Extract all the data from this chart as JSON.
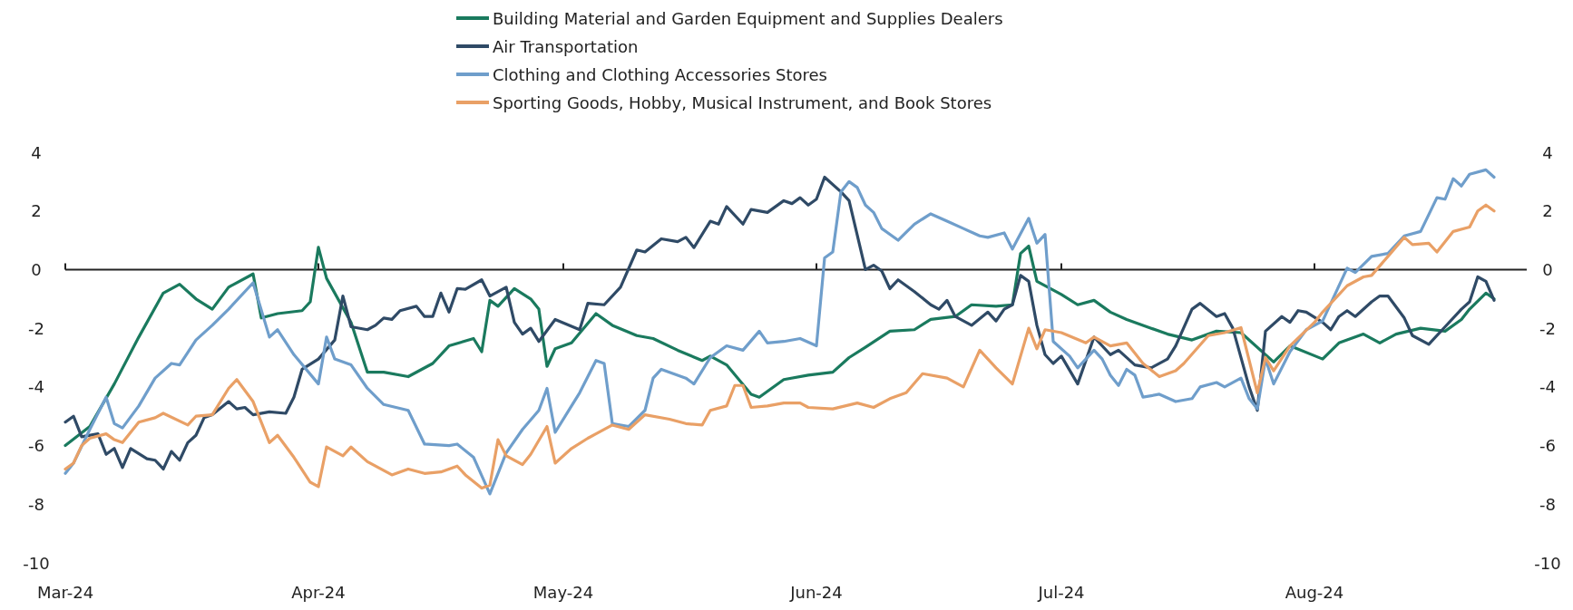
{
  "chart_data": {
    "type": "line",
    "legend": "top",
    "line_style": "solid",
    "marker": "none",
    "xlim": [
      "2024-03-01",
      "2024-08-27"
    ],
    "xticks": [
      {
        "value": "2024-03-01",
        "label": "Mar-24"
      },
      {
        "value": "2024-04-01",
        "label": "Apr-24"
      },
      {
        "value": "2024-05-01",
        "label": "May-24"
      },
      {
        "value": "2024-06-01",
        "label": "Jun-24"
      },
      {
        "value": "2024-07-01",
        "label": "Jul-24"
      },
      {
        "value": "2024-08-01",
        "label": "Aug-24"
      }
    ],
    "ylim": [
      -10,
      4
    ],
    "yticks": [
      -10,
      -8,
      -6,
      -4,
      -2,
      0,
      2,
      4
    ],
    "y2lim": [
      -10,
      4
    ],
    "y2ticks": [
      -10,
      -8,
      -6,
      -4,
      -2,
      0,
      2,
      4
    ],
    "series": [
      {
        "name": "Building Material and Garden Equipment and Supplies Dealers",
        "color": "#1a7a5e",
        "x": [
          "2024-03-01",
          "2024-03-04",
          "2024-03-07",
          "2024-03-10",
          "2024-03-13",
          "2024-03-15",
          "2024-03-17",
          "2024-03-19",
          "2024-03-21",
          "2024-03-24",
          "2024-03-25",
          "2024-03-27",
          "2024-03-30",
          "2024-03-31",
          "2024-04-01",
          "2024-04-02",
          "2024-04-05",
          "2024-04-07",
          "2024-04-09",
          "2024-04-12",
          "2024-04-15",
          "2024-04-17",
          "2024-04-20",
          "2024-04-21",
          "2024-04-22",
          "2024-04-23",
          "2024-04-25",
          "2024-04-27",
          "2024-04-28",
          "2024-04-29",
          "2024-04-30",
          "2024-05-02",
          "2024-05-05",
          "2024-05-07",
          "2024-05-10",
          "2024-05-12",
          "2024-05-15",
          "2024-05-18",
          "2024-05-19",
          "2024-05-21",
          "2024-05-24",
          "2024-05-25",
          "2024-05-28",
          "2024-05-31",
          "2024-06-03",
          "2024-06-05",
          "2024-06-07",
          "2024-06-10",
          "2024-06-13",
          "2024-06-15",
          "2024-06-18",
          "2024-06-20",
          "2024-06-23",
          "2024-06-25",
          "2024-06-26",
          "2024-06-27",
          "2024-06-28",
          "2024-07-01",
          "2024-07-03",
          "2024-07-05",
          "2024-07-07",
          "2024-07-09",
          "2024-07-12",
          "2024-07-14",
          "2024-07-17",
          "2024-07-20",
          "2024-07-23",
          "2024-07-27",
          "2024-07-29",
          "2024-08-02",
          "2024-08-04",
          "2024-08-07",
          "2024-08-09",
          "2024-08-11",
          "2024-08-14",
          "2024-08-17",
          "2024-08-19",
          "2024-08-20",
          "2024-08-22",
          "2024-08-23"
        ],
        "values": [
          -6.0,
          -5.35,
          -3.9,
          -2.3,
          -0.8,
          -0.5,
          -1.0,
          -1.35,
          -0.6,
          -0.15,
          -1.65,
          -1.5,
          -1.4,
          -1.1,
          0.76,
          -0.3,
          -1.8,
          -3.5,
          -3.5,
          -3.65,
          -3.2,
          -2.6,
          -2.35,
          -2.8,
          -1.05,
          -1.25,
          -0.65,
          -1.0,
          -1.35,
          -3.3,
          -2.7,
          -2.5,
          -1.5,
          -1.9,
          -2.25,
          -2.35,
          -2.75,
          -3.1,
          -2.95,
          -3.25,
          -4.25,
          -4.35,
          -3.75,
          -3.6,
          -3.5,
          -3.0,
          -2.65,
          -2.1,
          -2.05,
          -1.7,
          -1.6,
          -1.2,
          -1.25,
          -1.2,
          0.55,
          0.8,
          -0.4,
          -0.85,
          -1.2,
          -1.05,
          -1.45,
          -1.7,
          -2.0,
          -2.2,
          -2.4,
          -2.1,
          -2.15,
          -3.15,
          -2.6,
          -3.05,
          -2.5,
          -2.2,
          -2.5,
          -2.2,
          -2.0,
          -2.1,
          -1.7,
          -1.35,
          -0.8,
          -1.0
        ]
      },
      {
        "name": "Air Transportation",
        "color": "#2f4a66",
        "x": [
          "2024-03-01",
          "2024-03-02",
          "2024-03-03",
          "2024-03-05",
          "2024-03-06",
          "2024-03-07",
          "2024-03-08",
          "2024-03-09",
          "2024-03-11",
          "2024-03-12",
          "2024-03-13",
          "2024-03-14",
          "2024-03-15",
          "2024-03-16",
          "2024-03-17",
          "2024-03-18",
          "2024-03-19",
          "2024-03-21",
          "2024-03-22",
          "2024-03-23",
          "2024-03-24",
          "2024-03-26",
          "2024-03-28",
          "2024-03-29",
          "2024-03-30",
          "2024-04-01",
          "2024-04-03",
          "2024-04-04",
          "2024-04-05",
          "2024-04-07",
          "2024-04-08",
          "2024-04-09",
          "2024-04-10",
          "2024-04-11",
          "2024-04-13",
          "2024-04-14",
          "2024-04-15",
          "2024-04-16",
          "2024-04-17",
          "2024-04-18",
          "2024-04-19",
          "2024-04-21",
          "2024-04-22",
          "2024-04-24",
          "2024-04-25",
          "2024-04-26",
          "2024-04-27",
          "2024-04-28",
          "2024-04-30",
          "2024-05-03",
          "2024-05-04",
          "2024-05-06",
          "2024-05-08",
          "2024-05-10",
          "2024-05-11",
          "2024-05-13",
          "2024-05-15",
          "2024-05-16",
          "2024-05-17",
          "2024-05-19",
          "2024-05-20",
          "2024-05-21",
          "2024-05-23",
          "2024-05-24",
          "2024-05-26",
          "2024-05-28",
          "2024-05-29",
          "2024-05-30",
          "2024-05-31",
          "2024-06-01",
          "2024-06-02",
          "2024-06-04",
          "2024-06-05",
          "2024-06-07",
          "2024-06-08",
          "2024-06-09",
          "2024-06-10",
          "2024-06-11",
          "2024-06-13",
          "2024-06-15",
          "2024-06-16",
          "2024-06-17",
          "2024-06-18",
          "2024-06-20",
          "2024-06-22",
          "2024-06-23",
          "2024-06-24",
          "2024-06-25",
          "2024-06-26",
          "2024-06-27",
          "2024-06-28",
          "2024-06-29",
          "2024-06-30",
          "2024-07-01",
          "2024-07-03",
          "2024-07-05",
          "2024-07-07",
          "2024-07-08",
          "2024-07-10",
          "2024-07-12",
          "2024-07-14",
          "2024-07-15",
          "2024-07-17",
          "2024-07-18",
          "2024-07-20",
          "2024-07-21",
          "2024-07-22",
          "2024-07-24",
          "2024-07-25",
          "2024-07-26",
          "2024-07-28",
          "2024-07-29",
          "2024-07-30",
          "2024-07-31",
          "2024-08-02",
          "2024-08-03",
          "2024-08-04",
          "2024-08-05",
          "2024-08-06",
          "2024-08-08",
          "2024-08-09",
          "2024-08-10",
          "2024-08-12",
          "2024-08-13",
          "2024-08-15",
          "2024-08-17",
          "2024-08-19",
          "2024-08-20",
          "2024-08-21",
          "2024-08-22",
          "2024-08-23"
        ],
        "values": [
          -5.2,
          -5.0,
          -5.7,
          -5.6,
          -6.3,
          -6.1,
          -6.75,
          -6.1,
          -6.45,
          -6.5,
          -6.8,
          -6.2,
          -6.5,
          -5.9,
          -5.65,
          -5.05,
          -4.95,
          -4.5,
          -4.75,
          -4.7,
          -4.95,
          -4.85,
          -4.9,
          -4.35,
          -3.4,
          -3.05,
          -2.4,
          -0.9,
          -1.95,
          -2.05,
          -1.9,
          -1.65,
          -1.7,
          -1.4,
          -1.25,
          -1.6,
          -1.6,
          -0.8,
          -1.45,
          -0.65,
          -0.67,
          -0.35,
          -0.9,
          -0.6,
          -1.8,
          -2.2,
          -2.0,
          -2.45,
          -1.7,
          -2.05,
          -1.15,
          -1.2,
          -0.6,
          0.67,
          0.6,
          1.05,
          0.95,
          1.1,
          0.75,
          1.65,
          1.55,
          2.15,
          1.55,
          2.05,
          1.95,
          2.35,
          2.25,
          2.45,
          2.2,
          2.4,
          3.15,
          2.65,
          2.35,
          0.0,
          0.15,
          -0.05,
          -0.65,
          -0.35,
          -0.75,
          -1.2,
          -1.35,
          -1.05,
          -1.6,
          -1.9,
          -1.45,
          -1.75,
          -1.35,
          -1.2,
          -0.2,
          -0.4,
          -1.9,
          -2.9,
          -3.2,
          -2.95,
          -3.9,
          -2.3,
          -2.9,
          -2.75,
          -3.25,
          -3.35,
          -3.05,
          -2.6,
          -1.35,
          -1.15,
          -1.6,
          -1.5,
          -2.0,
          -4.0,
          -4.8,
          -2.1,
          -1.6,
          -1.8,
          -1.4,
          -1.45,
          -1.8,
          -2.05,
          -1.6,
          -1.4,
          -1.6,
          -1.1,
          -0.9,
          -0.9,
          -1.65,
          -2.25,
          -2.55,
          -1.95,
          -1.35,
          -1.1,
          -0.25,
          -0.4,
          -1.05
        ]
      },
      {
        "name": "Clothing and Clothing Accessories Stores",
        "color": "#6f9ecb",
        "x": [
          "2024-03-01",
          "2024-03-02",
          "2024-03-04",
          "2024-03-06",
          "2024-03-07",
          "2024-03-08",
          "2024-03-10",
          "2024-03-12",
          "2024-03-14",
          "2024-03-15",
          "2024-03-17",
          "2024-03-19",
          "2024-03-21",
          "2024-03-24",
          "2024-03-26",
          "2024-03-27",
          "2024-03-29",
          "2024-04-01",
          "2024-04-02",
          "2024-04-03",
          "2024-04-05",
          "2024-04-07",
          "2024-04-09",
          "2024-04-12",
          "2024-04-14",
          "2024-04-17",
          "2024-04-18",
          "2024-04-20",
          "2024-04-22",
          "2024-04-24",
          "2024-04-26",
          "2024-04-28",
          "2024-04-29",
          "2024-04-30",
          "2024-05-02",
          "2024-05-03",
          "2024-05-05",
          "2024-05-06",
          "2024-05-07",
          "2024-05-09",
          "2024-05-11",
          "2024-05-12",
          "2024-05-13",
          "2024-05-16",
          "2024-05-17",
          "2024-05-19",
          "2024-05-21",
          "2024-05-23",
          "2024-05-25",
          "2024-05-26",
          "2024-05-28",
          "2024-05-30",
          "2024-06-01",
          "2024-06-02",
          "2024-06-03",
          "2024-06-04",
          "2024-06-05",
          "2024-06-06",
          "2024-06-07",
          "2024-06-08",
          "2024-06-09",
          "2024-06-11",
          "2024-06-13",
          "2024-06-15",
          "2024-06-17",
          "2024-06-19",
          "2024-06-21",
          "2024-06-22",
          "2024-06-24",
          "2024-06-25",
          "2024-06-27",
          "2024-06-28",
          "2024-06-29",
          "2024-06-30",
          "2024-07-02",
          "2024-07-03",
          "2024-07-04",
          "2024-07-05",
          "2024-07-06",
          "2024-07-07",
          "2024-07-08",
          "2024-07-09",
          "2024-07-10",
          "2024-07-11",
          "2024-07-13",
          "2024-07-15",
          "2024-07-17",
          "2024-07-18",
          "2024-07-20",
          "2024-07-21",
          "2024-07-23",
          "2024-07-24",
          "2024-07-25",
          "2024-07-26",
          "2024-07-27",
          "2024-07-29",
          "2024-07-31",
          "2024-08-02",
          "2024-08-05",
          "2024-08-06",
          "2024-08-08",
          "2024-08-10",
          "2024-08-12",
          "2024-08-14",
          "2024-08-16",
          "2024-08-17",
          "2024-08-18",
          "2024-08-19",
          "2024-08-20",
          "2024-08-22",
          "2024-08-23"
        ],
        "values": [
          -6.95,
          -6.6,
          -5.45,
          -4.35,
          -5.25,
          -5.4,
          -4.65,
          -3.7,
          -3.2,
          -3.25,
          -2.4,
          -1.9,
          -1.35,
          -0.45,
          -2.3,
          -2.05,
          -2.9,
          -3.9,
          -2.3,
          -3.05,
          -3.25,
          -4.05,
          -4.6,
          -4.8,
          -5.95,
          -6.0,
          -5.95,
          -6.4,
          -7.65,
          -6.25,
          -5.45,
          -4.8,
          -4.05,
          -5.55,
          -4.65,
          -4.2,
          -3.1,
          -3.2,
          -5.25,
          -5.35,
          -4.8,
          -3.7,
          -3.4,
          -3.7,
          -3.9,
          -3.0,
          -2.6,
          -2.75,
          -2.1,
          -2.5,
          -2.45,
          -2.35,
          -2.6,
          0.4,
          0.6,
          2.65,
          3.0,
          2.8,
          2.2,
          1.95,
          1.4,
          1.0,
          1.55,
          1.9,
          1.65,
          1.4,
          1.15,
          1.1,
          1.25,
          0.7,
          1.75,
          0.9,
          1.2,
          -2.45,
          -2.95,
          -3.35,
          -3.05,
          -2.75,
          -3.05,
          -3.6,
          -3.95,
          -3.4,
          -3.6,
          -4.35,
          -4.25,
          -4.5,
          -4.4,
          -4.0,
          -3.85,
          -4.0,
          -3.7,
          -4.4,
          -4.75,
          -3.05,
          -3.9,
          -2.8,
          -2.05,
          -1.75,
          0.05,
          -0.1,
          0.45,
          0.55,
          1.15,
          1.3,
          2.45,
          2.4,
          3.1,
          2.85,
          3.25,
          3.4,
          3.15
        ]
      },
      {
        "name": "Sporting Goods, Hobby, Musical Instrument, and Book Stores",
        "color": "#e9a066",
        "x": [
          "2024-03-01",
          "2024-03-02",
          "2024-03-03",
          "2024-03-04",
          "2024-03-06",
          "2024-03-07",
          "2024-03-08",
          "2024-03-10",
          "2024-03-12",
          "2024-03-13",
          "2024-03-16",
          "2024-03-17",
          "2024-03-19",
          "2024-03-21",
          "2024-03-22",
          "2024-03-24",
          "2024-03-26",
          "2024-03-27",
          "2024-03-29",
          "2024-03-31",
          "2024-04-01",
          "2024-04-02",
          "2024-04-04",
          "2024-04-05",
          "2024-04-07",
          "2024-04-10",
          "2024-04-12",
          "2024-04-14",
          "2024-04-16",
          "2024-04-18",
          "2024-04-19",
          "2024-04-21",
          "2024-04-22",
          "2024-04-23",
          "2024-04-24",
          "2024-04-26",
          "2024-04-27",
          "2024-04-29",
          "2024-04-30",
          "2024-05-02",
          "2024-05-04",
          "2024-05-05",
          "2024-05-07",
          "2024-05-09",
          "2024-05-11",
          "2024-05-14",
          "2024-05-16",
          "2024-05-18",
          "2024-05-19",
          "2024-05-21",
          "2024-05-22",
          "2024-05-23",
          "2024-05-24",
          "2024-05-26",
          "2024-05-28",
          "2024-05-30",
          "2024-05-31",
          "2024-06-03",
          "2024-06-06",
          "2024-06-08",
          "2024-06-10",
          "2024-06-12",
          "2024-06-14",
          "2024-06-17",
          "2024-06-19",
          "2024-06-21",
          "2024-06-23",
          "2024-06-25",
          "2024-06-27",
          "2024-06-28",
          "2024-06-29",
          "2024-07-01",
          "2024-07-04",
          "2024-07-05",
          "2024-07-07",
          "2024-07-09",
          "2024-07-11",
          "2024-07-13",
          "2024-07-15",
          "2024-07-16",
          "2024-07-19",
          "2024-07-21",
          "2024-07-23",
          "2024-07-25",
          "2024-07-26",
          "2024-07-27",
          "2024-07-29",
          "2024-08-01",
          "2024-08-02",
          "2024-08-05",
          "2024-08-07",
          "2024-08-08",
          "2024-08-10",
          "2024-08-12",
          "2024-08-13",
          "2024-08-15",
          "2024-08-16",
          "2024-08-18",
          "2024-08-20",
          "2024-08-21",
          "2024-08-22",
          "2024-08-23"
        ],
        "values": [
          -6.8,
          -6.6,
          -6.0,
          -5.75,
          -5.6,
          -5.8,
          -5.9,
          -5.2,
          -5.05,
          -4.9,
          -5.3,
          -5.0,
          -4.95,
          -4.05,
          -3.75,
          -4.5,
          -5.9,
          -5.65,
          -6.4,
          -7.25,
          -7.4,
          -6.05,
          -6.35,
          -6.05,
          -6.55,
          -7.0,
          -6.8,
          -6.95,
          -6.9,
          -6.7,
          -7.0,
          -7.45,
          -7.35,
          -5.8,
          -6.35,
          -6.65,
          -6.3,
          -5.35,
          -6.6,
          -6.1,
          -5.75,
          -5.6,
          -5.3,
          -5.45,
          -4.95,
          -5.1,
          -5.25,
          -5.3,
          -4.8,
          -4.65,
          -3.95,
          -3.95,
          -4.7,
          -4.65,
          -4.55,
          -4.55,
          -4.7,
          -4.75,
          -4.55,
          -4.7,
          -4.4,
          -4.2,
          -3.55,
          -3.7,
          -4.0,
          -2.75,
          -3.35,
          -3.9,
          -2.0,
          -2.7,
          -2.05,
          -2.15,
          -2.5,
          -2.3,
          -2.6,
          -2.5,
          -3.2,
          -3.65,
          -3.45,
          -3.2,
          -2.25,
          -2.15,
          -1.98,
          -4.2,
          -3.0,
          -3.45,
          -2.6,
          -1.8,
          -1.45,
          -0.55,
          -0.25,
          -0.2,
          0.45,
          1.1,
          0.85,
          0.9,
          0.6,
          1.3,
          1.45,
          2.0,
          2.2,
          2.0
        ]
      }
    ]
  }
}
